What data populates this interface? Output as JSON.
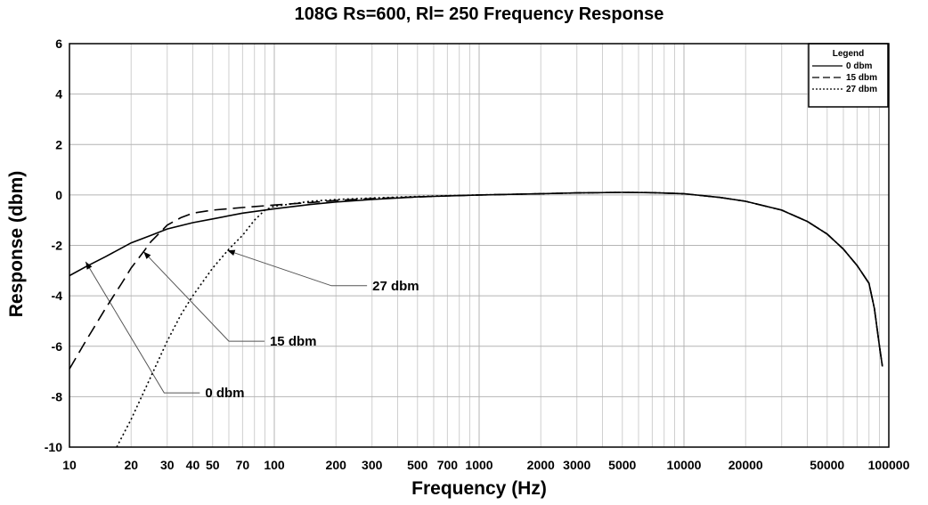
{
  "chart_data": {
    "type": "line",
    "title": "108G Rs=600, Rl= 250 Frequency Response",
    "xlabel": "Frequency (Hz)",
    "ylabel": "Response (dbm)",
    "xscale": "log",
    "xlim": [
      10,
      100000
    ],
    "ylim": [
      -10,
      6
    ],
    "grid": true,
    "legend": {
      "title": "Legend",
      "placement": "top-right"
    },
    "x_tick_labels": [
      {
        "value": 10,
        "label": "10"
      },
      {
        "value": 20,
        "label": "20"
      },
      {
        "value": 30,
        "label": "30"
      },
      {
        "value": 40,
        "label": "40"
      },
      {
        "value": 50,
        "label": "50"
      },
      {
        "value": 70,
        "label": "70"
      },
      {
        "value": 100,
        "label": "100"
      },
      {
        "value": 200,
        "label": "200"
      },
      {
        "value": 300,
        "label": "300"
      },
      {
        "value": 500,
        "label": "500"
      },
      {
        "value": 700,
        "label": "700"
      },
      {
        "value": 1000,
        "label": "1000"
      },
      {
        "value": 2000,
        "label": "2000"
      },
      {
        "value": 3000,
        "label": "3000"
      },
      {
        "value": 5000,
        "label": "5000"
      },
      {
        "value": 10000,
        "label": "10000"
      },
      {
        "value": 20000,
        "label": "20000"
      },
      {
        "value": 50000,
        "label": "50000"
      },
      {
        "value": 100000,
        "label": "100000"
      }
    ],
    "y_tick_labels": [
      {
        "value": 6,
        "label": "6"
      },
      {
        "value": 4,
        "label": "4"
      },
      {
        "value": 2,
        "label": "2"
      },
      {
        "value": 0,
        "label": "0"
      },
      {
        "value": -2,
        "label": "-2"
      },
      {
        "value": -4,
        "label": "-4"
      },
      {
        "value": -6,
        "label": "-6"
      },
      {
        "value": -8,
        "label": "-8"
      },
      {
        "value": -10,
        "label": "-10"
      }
    ],
    "series": [
      {
        "name": "0 dbm",
        "style": "solid",
        "points": [
          [
            10,
            -3.2
          ],
          [
            12,
            -2.85
          ],
          [
            15,
            -2.45
          ],
          [
            20,
            -1.9
          ],
          [
            25,
            -1.6
          ],
          [
            30,
            -1.35
          ],
          [
            40,
            -1.1
          ],
          [
            50,
            -0.95
          ],
          [
            70,
            -0.72
          ],
          [
            100,
            -0.55
          ],
          [
            150,
            -0.38
          ],
          [
            200,
            -0.28
          ],
          [
            300,
            -0.18
          ],
          [
            500,
            -0.08
          ],
          [
            700,
            -0.04
          ],
          [
            1000,
            0.0
          ],
          [
            2000,
            0.05
          ],
          [
            3000,
            0.08
          ],
          [
            5000,
            0.1
          ],
          [
            7000,
            0.09
          ],
          [
            10000,
            0.05
          ],
          [
            15000,
            -0.1
          ],
          [
            20000,
            -0.25
          ],
          [
            30000,
            -0.6
          ],
          [
            40000,
            -1.05
          ],
          [
            50000,
            -1.55
          ],
          [
            60000,
            -2.15
          ],
          [
            70000,
            -2.8
          ],
          [
            80000,
            -3.5
          ],
          [
            85000,
            -4.5
          ],
          [
            90000,
            -6.0
          ],
          [
            93000,
            -6.8
          ]
        ]
      },
      {
        "name": "15 dbm",
        "style": "dashed",
        "points": [
          [
            10,
            -6.9
          ],
          [
            12,
            -5.8
          ],
          [
            15,
            -4.5
          ],
          [
            18,
            -3.5
          ],
          [
            20,
            -2.9
          ],
          [
            23,
            -2.25
          ],
          [
            25,
            -1.85
          ],
          [
            28,
            -1.45
          ],
          [
            30,
            -1.2
          ],
          [
            35,
            -0.9
          ],
          [
            40,
            -0.72
          ],
          [
            50,
            -0.6
          ],
          [
            70,
            -0.5
          ],
          [
            100,
            -0.4
          ],
          [
            150,
            -0.3
          ],
          [
            200,
            -0.22
          ],
          [
            300,
            -0.15
          ],
          [
            500,
            -0.08
          ],
          [
            700,
            -0.04
          ],
          [
            1000,
            0.0
          ],
          [
            2000,
            0.05
          ],
          [
            3000,
            0.08
          ],
          [
            5000,
            0.1
          ],
          [
            7000,
            0.09
          ],
          [
            10000,
            0.05
          ],
          [
            15000,
            -0.1
          ],
          [
            20000,
            -0.25
          ],
          [
            30000,
            -0.6
          ],
          [
            40000,
            -1.05
          ],
          [
            50000,
            -1.55
          ],
          [
            60000,
            -2.15
          ],
          [
            70000,
            -2.8
          ],
          [
            80000,
            -3.5
          ],
          [
            85000,
            -4.5
          ],
          [
            90000,
            -6.0
          ],
          [
            93000,
            -6.8
          ]
        ]
      },
      {
        "name": "27 dbm",
        "style": "dotted",
        "points": [
          [
            17,
            -10.0
          ],
          [
            20,
            -8.9
          ],
          [
            25,
            -7.2
          ],
          [
            30,
            -5.8
          ],
          [
            35,
            -4.75
          ],
          [
            40,
            -4.0
          ],
          [
            50,
            -2.9
          ],
          [
            60,
            -2.15
          ],
          [
            70,
            -1.6
          ],
          [
            80,
            -1.0
          ],
          [
            90,
            -0.6
          ],
          [
            100,
            -0.45
          ],
          [
            150,
            -0.25
          ],
          [
            200,
            -0.18
          ],
          [
            300,
            -0.12
          ],
          [
            500,
            -0.06
          ],
          [
            700,
            -0.03
          ],
          [
            1000,
            0.0
          ],
          [
            2000,
            0.05
          ],
          [
            3000,
            0.08
          ],
          [
            5000,
            0.1
          ],
          [
            7000,
            0.09
          ],
          [
            10000,
            0.05
          ],
          [
            15000,
            -0.1
          ],
          [
            20000,
            -0.25
          ],
          [
            30000,
            -0.6
          ],
          [
            40000,
            -1.05
          ],
          [
            50000,
            -1.55
          ],
          [
            60000,
            -2.15
          ],
          [
            70000,
            -2.8
          ],
          [
            80000,
            -3.5
          ],
          [
            85000,
            -4.5
          ],
          [
            90000,
            -6.0
          ],
          [
            93000,
            -6.8
          ]
        ]
      }
    ],
    "annotations": [
      {
        "text": "27 dbm",
        "target": [
          59,
          -2.2
        ],
        "elbow": [
          190,
          -3.6
        ]
      },
      {
        "text": "15 dbm",
        "target": [
          23,
          -2.25
        ],
        "elbow": [
          60,
          -5.8
        ]
      },
      {
        "text": "0 dbm",
        "target": [
          12,
          -2.65
        ],
        "elbow": [
          29,
          -7.85
        ]
      }
    ]
  }
}
